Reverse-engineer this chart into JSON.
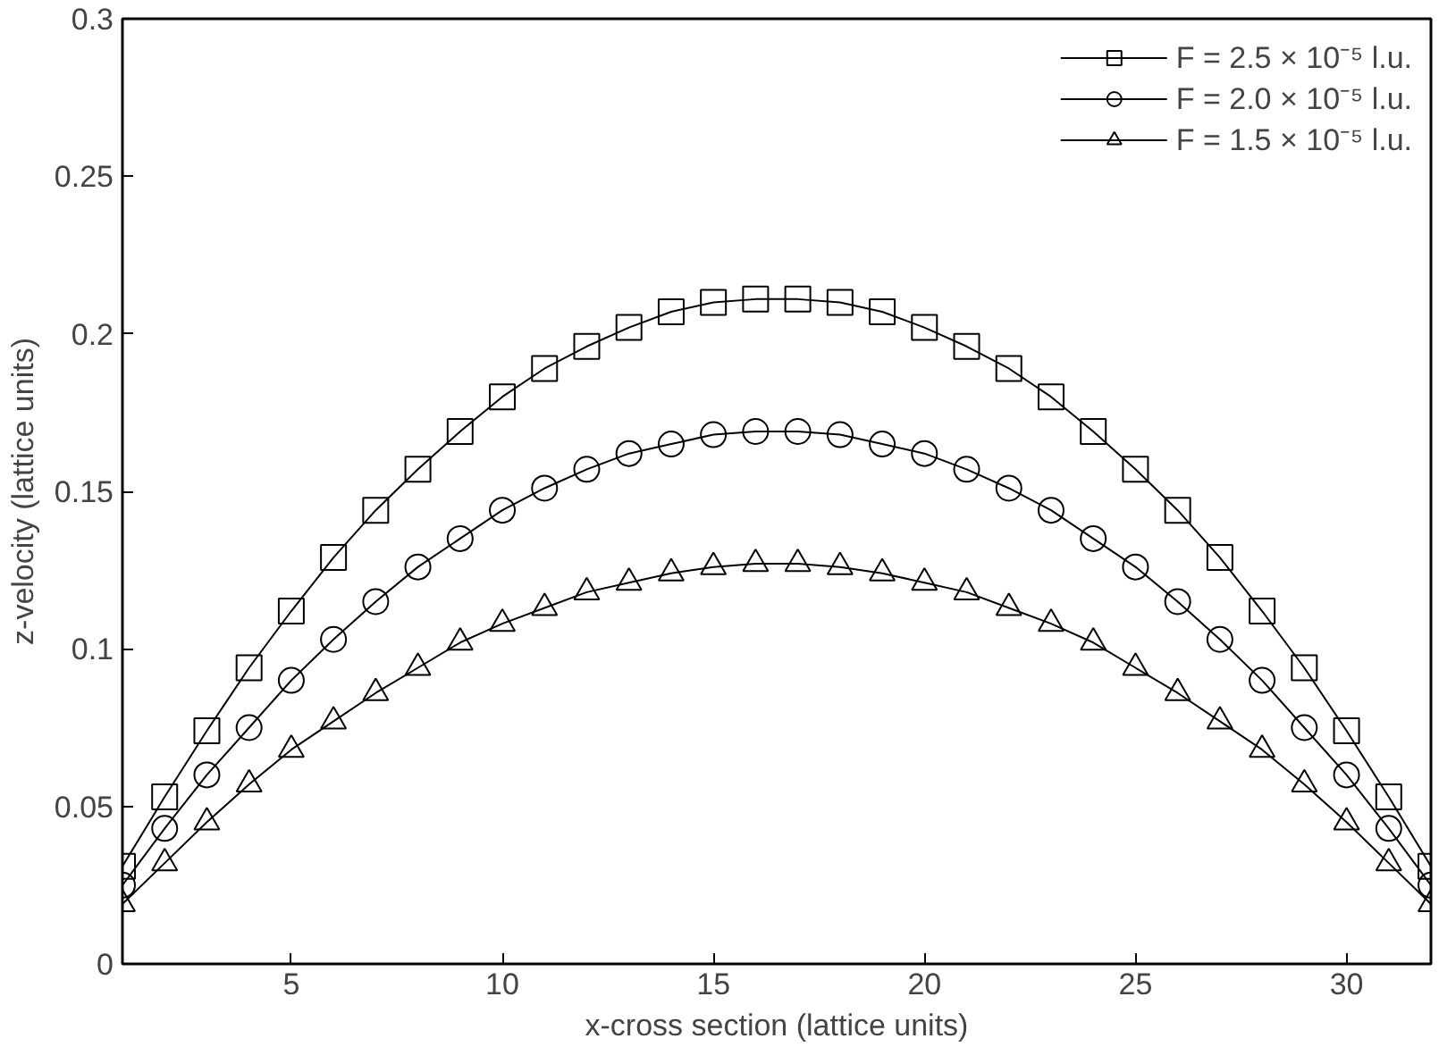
{
  "chart_data": {
    "type": "line",
    "xlabel": "x-cross section (lattice units)",
    "ylabel": "z-velocity (lattice units)",
    "x": [
      1,
      2,
      3,
      4,
      5,
      6,
      7,
      8,
      9,
      10,
      11,
      12,
      13,
      14,
      15,
      16,
      17,
      18,
      19,
      20,
      21,
      22,
      23,
      24,
      25,
      26,
      27,
      28,
      29,
      30,
      31,
      32
    ],
    "series": [
      {
        "name": "F = 2.5 × 10⁻⁵ l.u.",
        "color": "#000000",
        "marker": "square",
        "values": [
          0.031,
          0.053,
          0.074,
          0.094,
          0.112,
          0.129,
          0.144,
          0.157,
          0.169,
          0.18,
          0.189,
          0.196,
          0.202,
          0.207,
          0.21,
          0.211,
          0.211,
          0.21,
          0.207,
          0.202,
          0.196,
          0.189,
          0.18,
          0.169,
          0.157,
          0.144,
          0.129,
          0.112,
          0.094,
          0.074,
          0.053,
          0.031
        ]
      },
      {
        "name": "F = 2.0 × 10⁻⁵ l.u.",
        "color": "#000000",
        "marker": "circle",
        "values": [
          0.025,
          0.043,
          0.06,
          0.075,
          0.09,
          0.103,
          0.115,
          0.126,
          0.135,
          0.144,
          0.151,
          0.157,
          0.162,
          0.165,
          0.168,
          0.169,
          0.169,
          0.168,
          0.165,
          0.162,
          0.157,
          0.151,
          0.144,
          0.135,
          0.126,
          0.115,
          0.103,
          0.09,
          0.075,
          0.06,
          0.043,
          0.025
        ]
      },
      {
        "name": "F = 1.5 × 10⁻⁵ l.u.",
        "color": "#000000",
        "marker": "triangle",
        "values": [
          0.019,
          0.032,
          0.045,
          0.057,
          0.068,
          0.077,
          0.086,
          0.094,
          0.102,
          0.108,
          0.113,
          0.118,
          0.121,
          0.124,
          0.126,
          0.127,
          0.127,
          0.126,
          0.124,
          0.121,
          0.118,
          0.113,
          0.108,
          0.102,
          0.094,
          0.086,
          0.077,
          0.068,
          0.057,
          0.045,
          0.032,
          0.019
        ]
      }
    ],
    "xlim": [
      1,
      32
    ],
    "xticks": [
      5,
      10,
      15,
      20,
      25,
      30
    ],
    "ylim": [
      0,
      0.3
    ],
    "yticks": [
      0,
      0.05,
      0.1,
      0.15,
      0.2,
      0.25,
      0.3
    ],
    "grid": false,
    "legend": "top right",
    "line_style": "solid"
  }
}
